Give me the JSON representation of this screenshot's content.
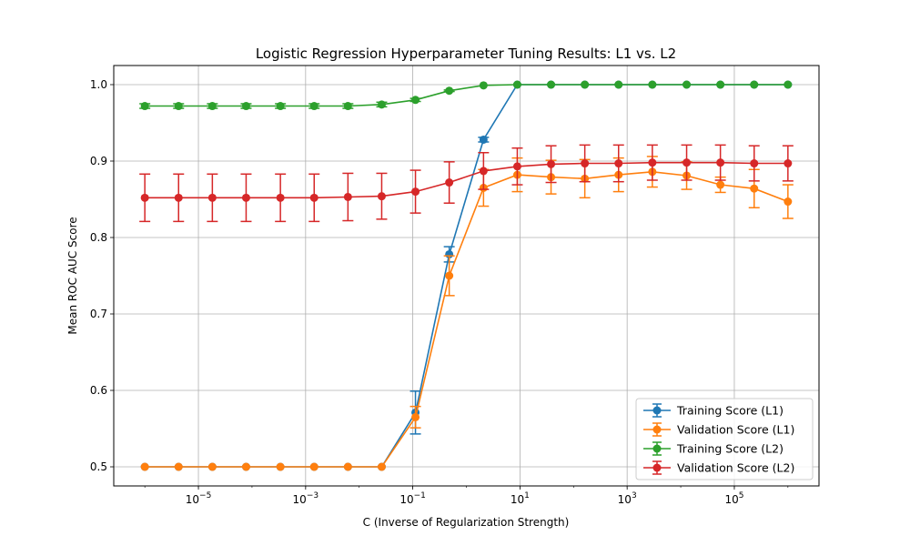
{
  "chart_data": {
    "type": "line",
    "title": "Logistic Regression Hyperparameter Tuning Results: L1 vs. L2",
    "xlabel": "C (Inverse of Regularization Strength)",
    "ylabel": "Mean ROC AUC Score",
    "xscale": "log",
    "xlim_exp": [
      -6.58,
      6.58
    ],
    "ylim": [
      0.475,
      1.025
    ],
    "grid": true,
    "legend_position": "lower-right",
    "x_tick_labels": [
      {
        "base": "10",
        "exp": "−5",
        "value_exp": -5
      },
      {
        "base": "10",
        "exp": "−3",
        "value_exp": -3
      },
      {
        "base": "10",
        "exp": "−1",
        "value_exp": -1
      },
      {
        "base": "10",
        "exp": "1",
        "value_exp": 1
      },
      {
        "base": "10",
        "exp": "3",
        "value_exp": 3
      },
      {
        "base": "10",
        "exp": "5",
        "value_exp": 5
      }
    ],
    "y_ticks": [
      0.5,
      0.6,
      0.7,
      0.8,
      0.9,
      1.0
    ],
    "y_tick_labels": [
      "0.5",
      "0.6",
      "0.7",
      "0.8",
      "0.9",
      "1.0"
    ],
    "x_log10": [
      -6.0,
      -5.37,
      -4.74,
      -4.11,
      -3.47,
      -2.84,
      -2.21,
      -1.58,
      -0.95,
      -0.32,
      0.32,
      0.95,
      1.58,
      2.21,
      2.84,
      3.47,
      4.11,
      4.74,
      5.37,
      6.0
    ],
    "series": [
      {
        "name": "Training Score (L1)",
        "color": "#1f77b4",
        "values": [
          0.5,
          0.5,
          0.5,
          0.5,
          0.5,
          0.5,
          0.5,
          0.5,
          0.571,
          0.778,
          0.928,
          1.0,
          1.0,
          1.0,
          1.0,
          1.0,
          1.0,
          1.0,
          1.0,
          1.0
        ],
        "errors": [
          0,
          0,
          0,
          0,
          0,
          0,
          0,
          0,
          0.028,
          0.01,
          0.003,
          0,
          0,
          0,
          0,
          0,
          0,
          0,
          0,
          0
        ]
      },
      {
        "name": "Validation Score (L1)",
        "color": "#ff7f0e",
        "values": [
          0.5,
          0.5,
          0.5,
          0.5,
          0.5,
          0.5,
          0.5,
          0.5,
          0.565,
          0.75,
          0.865,
          0.882,
          0.879,
          0.877,
          0.882,
          0.886,
          0.881,
          0.869,
          0.864,
          0.847
        ],
        "errors": [
          0,
          0,
          0,
          0,
          0,
          0,
          0,
          0,
          0.014,
          0.026,
          0.024,
          0.022,
          0.022,
          0.025,
          0.022,
          0.02,
          0.018,
          0.01,
          0.025,
          0.022
        ]
      },
      {
        "name": "Training Score (L2)",
        "color": "#2ca02c",
        "values": [
          0.972,
          0.972,
          0.972,
          0.972,
          0.972,
          0.972,
          0.972,
          0.974,
          0.98,
          0.992,
          0.999,
          1.0,
          1.0,
          1.0,
          1.0,
          1.0,
          1.0,
          1.0,
          1.0,
          1.0
        ],
        "errors": [
          0.003,
          0.003,
          0.003,
          0.003,
          0.003,
          0.003,
          0.003,
          0.003,
          0.002,
          0.001,
          0,
          0,
          0,
          0,
          0,
          0,
          0,
          0,
          0,
          0
        ]
      },
      {
        "name": "Validation Score (L2)",
        "color": "#d62728",
        "values": [
          0.852,
          0.852,
          0.852,
          0.852,
          0.852,
          0.852,
          0.853,
          0.854,
          0.86,
          0.872,
          0.887,
          0.893,
          0.896,
          0.897,
          0.897,
          0.898,
          0.898,
          0.898,
          0.897,
          0.897
        ],
        "errors": [
          0.031,
          0.031,
          0.031,
          0.031,
          0.031,
          0.031,
          0.031,
          0.03,
          0.028,
          0.027,
          0.024,
          0.024,
          0.024,
          0.024,
          0.024,
          0.023,
          0.023,
          0.023,
          0.023,
          0.023
        ]
      }
    ]
  }
}
